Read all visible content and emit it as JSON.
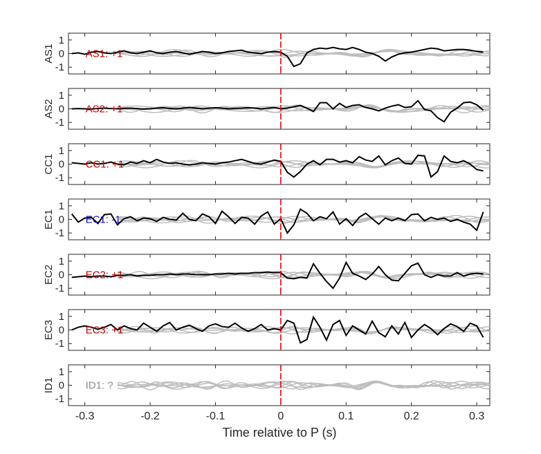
{
  "chart_data": {
    "type": "line",
    "xlabel": "Time relative to P (s)",
    "xlim": [
      -0.325,
      0.32
    ],
    "ylim": [
      -1.5,
      1.5
    ],
    "xticks": [
      -0.3,
      -0.2,
      -0.1,
      0,
      0.1,
      0.2,
      0.3
    ],
    "xtick_labels": [
      "-0.3",
      "-0.2",
      "-0.1",
      "0",
      "0.1",
      "0.2",
      "0.3"
    ],
    "yticks": [
      1,
      0,
      -1
    ],
    "ytick_labels": [
      "1",
      "0",
      "-1"
    ],
    "marker_time": 0,
    "colors": {
      "trace": "#000000",
      "background": "#bdbdbd",
      "marker": "#e8000b",
      "positive": "#c00000",
      "negative": "#1010c0",
      "unknown": "#8c8c8c"
    },
    "panels": [
      {
        "station": "AS1",
        "label": "AS1: +1",
        "polarity": "positive",
        "x": [
          -0.32,
          -0.31,
          -0.3,
          -0.29,
          -0.28,
          -0.27,
          -0.26,
          -0.25,
          -0.24,
          -0.23,
          -0.22,
          -0.21,
          -0.2,
          -0.19,
          -0.18,
          -0.17,
          -0.16,
          -0.15,
          -0.14,
          -0.13,
          -0.12,
          -0.11,
          -0.1,
          -0.09,
          -0.08,
          -0.07,
          -0.06,
          -0.05,
          -0.04,
          -0.03,
          -0.02,
          -0.01,
          0.0,
          0.01,
          0.02,
          0.03,
          0.04,
          0.05,
          0.06,
          0.07,
          0.08,
          0.09,
          0.1,
          0.11,
          0.12,
          0.13,
          0.14,
          0.15,
          0.16,
          0.17,
          0.18,
          0.19,
          0.2,
          0.21,
          0.22,
          0.23,
          0.24,
          0.25,
          0.26,
          0.27,
          0.28,
          0.29,
          0.3,
          0.31
        ],
        "y": [
          0.0,
          0.05,
          -0.05,
          0.1,
          0.15,
          0.05,
          0.0,
          0.1,
          0.2,
          0.05,
          0.0,
          0.1,
          0.2,
          0.05,
          0.0,
          0.1,
          0.15,
          0.05,
          -0.05,
          0.05,
          0.15,
          0.1,
          0.0,
          0.05,
          0.15,
          0.2,
          0.25,
          0.1,
          0.05,
          0.0,
          0.1,
          0.15,
          0.1,
          -0.2,
          -0.95,
          -0.75,
          0.05,
          0.3,
          0.4,
          0.35,
          0.45,
          0.35,
          0.3,
          0.45,
          0.3,
          0.1,
          0.0,
          -0.2,
          -0.55,
          -0.25,
          -0.05,
          0.05,
          0.1,
          0.2,
          0.3,
          0.4,
          0.35,
          0.2,
          0.25,
          0.3,
          0.3,
          0.25,
          0.15,
          0.1
        ]
      },
      {
        "station": "AS2",
        "label": "AS2: +1",
        "polarity": "positive",
        "x": [
          -0.32,
          -0.31,
          -0.3,
          -0.29,
          -0.28,
          -0.27,
          -0.26,
          -0.25,
          -0.24,
          -0.23,
          -0.22,
          -0.21,
          -0.2,
          -0.19,
          -0.18,
          -0.17,
          -0.16,
          -0.15,
          -0.14,
          -0.13,
          -0.12,
          -0.11,
          -0.1,
          -0.09,
          -0.08,
          -0.07,
          -0.06,
          -0.05,
          -0.04,
          -0.03,
          -0.02,
          -0.01,
          0.0,
          0.01,
          0.02,
          0.03,
          0.04,
          0.05,
          0.06,
          0.07,
          0.08,
          0.09,
          0.1,
          0.11,
          0.12,
          0.13,
          0.14,
          0.15,
          0.16,
          0.17,
          0.18,
          0.19,
          0.2,
          0.21,
          0.22,
          0.23,
          0.24,
          0.25,
          0.26,
          0.27,
          0.28,
          0.29,
          0.3,
          0.31
        ],
        "y": [
          0.0,
          0.02,
          0.0,
          -0.02,
          0.03,
          0.05,
          0.02,
          0.0,
          0.03,
          0.05,
          0.02,
          -0.02,
          0.0,
          0.05,
          0.08,
          0.03,
          0.0,
          0.05,
          0.1,
          0.05,
          0.0,
          0.05,
          0.08,
          0.05,
          0.0,
          0.03,
          0.05,
          0.08,
          0.05,
          0.0,
          0.05,
          0.1,
          0.0,
          0.05,
          0.15,
          0.25,
          0.05,
          -0.2,
          0.45,
          0.45,
          0.0,
          0.4,
          0.1,
          0.25,
          0.3,
          0.1,
          0.0,
          -0.15,
          0.05,
          0.2,
          0.3,
          0.1,
          0.15,
          0.6,
          -0.05,
          -0.15,
          -0.65,
          -0.95,
          -0.25,
          0.05,
          0.45,
          0.5,
          0.3,
          -0.1
        ]
      },
      {
        "station": "CC1",
        "label": "CC1: +1",
        "polarity": "positive",
        "x": [
          -0.32,
          -0.31,
          -0.3,
          -0.29,
          -0.28,
          -0.27,
          -0.26,
          -0.25,
          -0.24,
          -0.23,
          -0.22,
          -0.21,
          -0.2,
          -0.19,
          -0.18,
          -0.17,
          -0.16,
          -0.15,
          -0.14,
          -0.13,
          -0.12,
          -0.11,
          -0.1,
          -0.09,
          -0.08,
          -0.07,
          -0.06,
          -0.05,
          -0.04,
          -0.03,
          -0.02,
          -0.01,
          0.0,
          0.01,
          0.02,
          0.03,
          0.04,
          0.05,
          0.06,
          0.07,
          0.08,
          0.09,
          0.1,
          0.11,
          0.12,
          0.13,
          0.14,
          0.15,
          0.16,
          0.17,
          0.18,
          0.19,
          0.2,
          0.21,
          0.22,
          0.23,
          0.24,
          0.25,
          0.26,
          0.27,
          0.28,
          0.29,
          0.3,
          0.31
        ],
        "y": [
          0.1,
          0.05,
          0.0,
          0.1,
          0.0,
          0.05,
          0.15,
          0.0,
          -0.05,
          0.15,
          0.05,
          0.25,
          0.1,
          0.35,
          0.15,
          0.05,
          0.1,
          0.0,
          -0.05,
          0.0,
          0.1,
          0.05,
          0.0,
          0.1,
          0.15,
          0.25,
          0.35,
          0.2,
          0.05,
          0.0,
          0.15,
          0.3,
          0.2,
          -0.6,
          -0.95,
          -0.55,
          0.0,
          0.25,
          -0.05,
          0.35,
          0.35,
          0.15,
          0.25,
          0.1,
          0.55,
          0.3,
          0.2,
          0.6,
          -0.05,
          0.25,
          0.45,
          0.05,
          0.0,
          0.65,
          0.6,
          -0.95,
          -0.55,
          0.6,
          0.2,
          0.1,
          0.25,
          0.0,
          -0.4,
          -0.5
        ]
      },
      {
        "station": "EC1",
        "label": "EC1: -1",
        "polarity": "negative",
        "x": [
          -0.32,
          -0.31,
          -0.3,
          -0.29,
          -0.28,
          -0.27,
          -0.26,
          -0.25,
          -0.24,
          -0.23,
          -0.22,
          -0.21,
          -0.2,
          -0.19,
          -0.18,
          -0.17,
          -0.16,
          -0.15,
          -0.14,
          -0.13,
          -0.12,
          -0.11,
          -0.1,
          -0.09,
          -0.08,
          -0.07,
          -0.06,
          -0.05,
          -0.04,
          -0.03,
          -0.02,
          -0.01,
          0.0,
          0.01,
          0.02,
          0.03,
          0.04,
          0.05,
          0.06,
          0.07,
          0.08,
          0.09,
          0.1,
          0.11,
          0.12,
          0.13,
          0.14,
          0.15,
          0.16,
          0.17,
          0.18,
          0.19,
          0.2,
          0.21,
          0.22,
          0.23,
          0.24,
          0.25,
          0.26,
          0.27,
          0.28,
          0.29,
          0.3,
          0.31
        ],
        "y": [
          0.4,
          -0.2,
          0.1,
          0.15,
          -0.3,
          0.35,
          0.4,
          -0.4,
          0.05,
          0.2,
          -0.1,
          0.1,
          0.05,
          -0.15,
          0.15,
          0.0,
          -0.05,
          0.45,
          0.0,
          -0.1,
          0.4,
          0.2,
          -0.3,
          0.6,
          0.2,
          -0.3,
          0.15,
          0.1,
          -0.35,
          0.25,
          0.55,
          -0.35,
          0.05,
          -1.0,
          -0.4,
          0.75,
          0.45,
          -0.1,
          0.2,
          0.05,
          0.55,
          -0.35,
          0.05,
          -0.45,
          0.15,
          0.45,
          0.05,
          -0.35,
          0.1,
          -0.1,
          0.1,
          -0.1,
          0.35,
          0.4,
          -0.1,
          0.15,
          0.0,
          0.1,
          -0.15,
          0.0,
          -0.2,
          -0.35,
          -0.8,
          0.55
        ]
      },
      {
        "station": "EC2",
        "label": "EC2: +1",
        "polarity": "positive",
        "x": [
          -0.32,
          -0.31,
          -0.3,
          -0.29,
          -0.28,
          -0.27,
          -0.26,
          -0.25,
          -0.24,
          -0.23,
          -0.22,
          -0.21,
          -0.2,
          -0.19,
          -0.18,
          -0.17,
          -0.16,
          -0.15,
          -0.14,
          -0.13,
          -0.12,
          -0.11,
          -0.1,
          -0.09,
          -0.08,
          -0.07,
          -0.06,
          -0.05,
          -0.04,
          -0.03,
          -0.02,
          -0.01,
          0.0,
          0.01,
          0.02,
          0.03,
          0.04,
          0.05,
          0.06,
          0.07,
          0.08,
          0.09,
          0.1,
          0.11,
          0.12,
          0.13,
          0.14,
          0.15,
          0.16,
          0.17,
          0.18,
          0.19,
          0.2,
          0.21,
          0.22,
          0.23,
          0.24,
          0.25,
          0.26,
          0.27,
          0.28,
          0.29,
          0.3,
          0.31
        ],
        "y": [
          -0.2,
          -0.15,
          -0.1,
          -0.15,
          -0.1,
          -0.1,
          -0.15,
          -0.05,
          -0.05,
          0.0,
          -0.1,
          -0.05,
          -0.05,
          0.0,
          0.0,
          0.05,
          0.0,
          0.05,
          0.05,
          0.0,
          0.0,
          0.0,
          0.05,
          0.05,
          0.1,
          0.05,
          0.1,
          0.1,
          0.15,
          0.15,
          0.2,
          0.15,
          0.15,
          -0.25,
          -0.3,
          -0.2,
          -0.25,
          0.8,
          0.1,
          -0.5,
          -1.0,
          -0.25,
          0.9,
          0.1,
          -0.1,
          -0.35,
          0.05,
          0.6,
          0.0,
          -0.4,
          -0.45,
          0.1,
          0.65,
          0.85,
          0.0,
          -0.2,
          0.0,
          -0.1,
          -0.1,
          0.15,
          -0.1,
          0.05,
          0.1,
          0.05
        ]
      },
      {
        "station": "EC3",
        "label": "EC3: +1",
        "polarity": "positive",
        "x": [
          -0.32,
          -0.31,
          -0.3,
          -0.29,
          -0.28,
          -0.27,
          -0.26,
          -0.25,
          -0.24,
          -0.23,
          -0.22,
          -0.21,
          -0.2,
          -0.19,
          -0.18,
          -0.17,
          -0.16,
          -0.15,
          -0.14,
          -0.13,
          -0.12,
          -0.11,
          -0.1,
          -0.09,
          -0.08,
          -0.07,
          -0.06,
          -0.05,
          -0.04,
          -0.03,
          -0.02,
          -0.01,
          0.0,
          0.01,
          0.02,
          0.03,
          0.04,
          0.05,
          0.06,
          0.07,
          0.08,
          0.09,
          0.1,
          0.11,
          0.12,
          0.13,
          0.14,
          0.15,
          0.16,
          0.17,
          0.18,
          0.19,
          0.2,
          0.21,
          0.22,
          0.23,
          0.24,
          0.25,
          0.26,
          0.27,
          0.28,
          0.29,
          0.3,
          0.31
        ],
        "y": [
          0.0,
          0.2,
          0.3,
          0.2,
          0.05,
          0.2,
          0.4,
          0.0,
          0.3,
          0.1,
          0.0,
          0.5,
          0.2,
          -0.1,
          0.3,
          0.55,
          0.0,
          0.2,
          0.35,
          0.1,
          -0.1,
          0.3,
          0.45,
          0.25,
          0.2,
          0.5,
          0.15,
          -0.1,
          0.1,
          0.4,
          0.0,
          0.1,
          0.0,
          0.7,
          0.5,
          -0.95,
          -0.7,
          0.95,
          0.2,
          -0.75,
          0.4,
          0.7,
          -0.4,
          0.3,
          0.0,
          -0.3,
          0.65,
          -0.2,
          -0.5,
          0.3,
          -0.3,
          0.55,
          -0.55,
          0.0,
          0.4,
          0.1,
          -0.35,
          0.1,
          0.45,
          0.25,
          -0.1,
          0.5,
          0.3,
          -0.55
        ]
      },
      {
        "station": "ID1",
        "label": "ID1: ?",
        "polarity": "unknown",
        "x": [],
        "y": []
      }
    ]
  }
}
